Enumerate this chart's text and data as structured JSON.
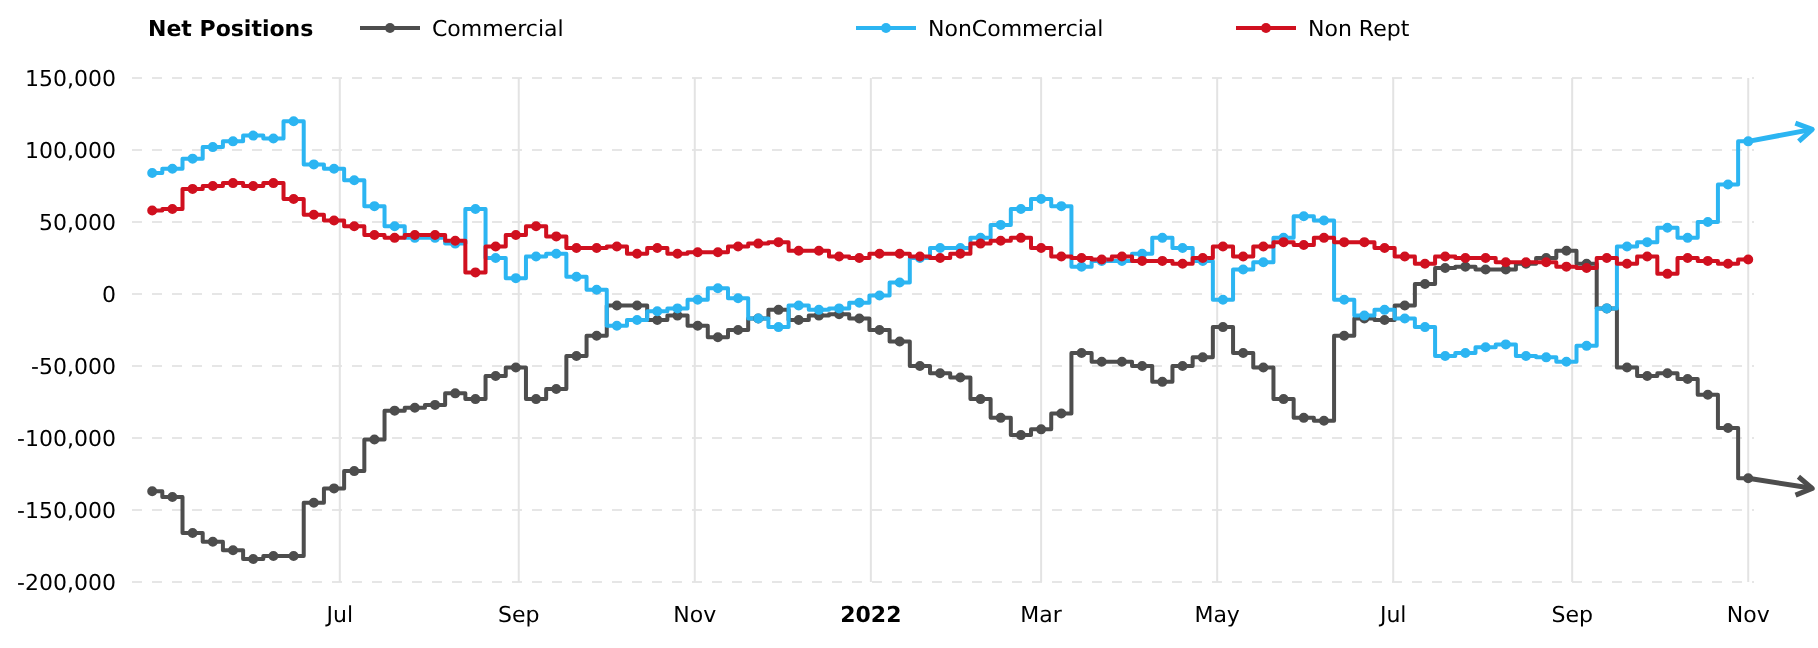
{
  "chart_data": {
    "type": "step",
    "legend_title": "Net Positions",
    "legend": "top",
    "grid": true,
    "marker": "circle",
    "line_style": "solid",
    "x": [
      "2021-04-27",
      "2021-05-04",
      "2021-05-11",
      "2021-05-18",
      "2021-05-25",
      "2021-06-01",
      "2021-06-08",
      "2021-06-15",
      "2021-06-22",
      "2021-06-29",
      "2021-07-06",
      "2021-07-13",
      "2021-07-20",
      "2021-07-27",
      "2021-08-03",
      "2021-08-10",
      "2021-08-17",
      "2021-08-24",
      "2021-08-31",
      "2021-09-07",
      "2021-09-14",
      "2021-09-21",
      "2021-09-28",
      "2021-10-05",
      "2021-10-12",
      "2021-10-19",
      "2021-10-26",
      "2021-11-02",
      "2021-11-09",
      "2021-11-16",
      "2021-11-23",
      "2021-11-30",
      "2021-12-07",
      "2021-12-14",
      "2021-12-21",
      "2021-12-28",
      "2022-01-04",
      "2022-01-11",
      "2022-01-18",
      "2022-01-25",
      "2022-02-01",
      "2022-02-08",
      "2022-02-15",
      "2022-02-22",
      "2022-03-01",
      "2022-03-08",
      "2022-03-15",
      "2022-03-22",
      "2022-03-29",
      "2022-04-05",
      "2022-04-12",
      "2022-04-19",
      "2022-04-26",
      "2022-05-03",
      "2022-05-10",
      "2022-05-17",
      "2022-05-24",
      "2022-05-31",
      "2022-06-07",
      "2022-06-14",
      "2022-06-21",
      "2022-06-28",
      "2022-07-05",
      "2022-07-12",
      "2022-07-19",
      "2022-07-26",
      "2022-08-02",
      "2022-08-09",
      "2022-08-16",
      "2022-08-23",
      "2022-08-30",
      "2022-09-06",
      "2022-09-13",
      "2022-09-20",
      "2022-09-27",
      "2022-10-04",
      "2022-10-11",
      "2022-10-18",
      "2022-10-25",
      "2022-11-01"
    ],
    "xlim": [
      "2021-04-20",
      "2022-11-03"
    ],
    "xticks": [
      {
        "value": "2021-07-01",
        "label": "Jul"
      },
      {
        "value": "2021-09-01",
        "label": "Sep"
      },
      {
        "value": "2021-11-01",
        "label": "Nov"
      },
      {
        "value": "2022-01-01",
        "label": "2022"
      },
      {
        "value": "2022-03-01",
        "label": "Mar"
      },
      {
        "value": "2022-05-01",
        "label": "May"
      },
      {
        "value": "2022-07-01",
        "label": "Jul"
      },
      {
        "value": "2022-09-01",
        "label": "Sep"
      },
      {
        "value": "2022-11-01",
        "label": "Nov"
      }
    ],
    "ylim": [
      -200000,
      150000
    ],
    "yticks": [
      {
        "value": -200000,
        "label": "-200,000"
      },
      {
        "value": -150000,
        "label": "-150,000"
      },
      {
        "value": -100000,
        "label": "-100,000"
      },
      {
        "value": -50000,
        "label": "-50,000"
      },
      0,
      {
        "value": 50000,
        "label": "50,000"
      },
      {
        "value": 100000,
        "label": "100,000"
      },
      {
        "value": 150000,
        "label": "150,000"
      }
    ],
    "series": [
      {
        "name": "Commercial",
        "color": "#4d4d4d",
        "values": [
          -137000,
          -141000,
          -166000,
          -172000,
          -178000,
          -184000,
          -182000,
          -182000,
          -145000,
          -135000,
          -123000,
          -101000,
          -81000,
          -79000,
          -77000,
          -69000,
          -73000,
          -57000,
          -51000,
          -73000,
          -66000,
          -43000,
          -29000,
          -8000,
          -8000,
          -18000,
          -15000,
          -22000,
          -30000,
          -25000,
          -17000,
          -11000,
          -18000,
          -15000,
          -14000,
          -17000,
          -25000,
          -33000,
          -50000,
          -55000,
          -58000,
          -73000,
          -86000,
          -98000,
          -94000,
          -83000,
          -41000,
          -47000,
          -47000,
          -50000,
          -61000,
          -50000,
          -44000,
          -23000,
          -41000,
          -51000,
          -73000,
          -86000,
          -88000,
          -29000,
          -17000,
          -18000,
          -8000,
          7000,
          18000,
          19000,
          17000,
          17000,
          21000,
          25000,
          30000,
          21000,
          -10000,
          -51000,
          -57000,
          -55000,
          -59000,
          -70000,
          -93000,
          -128000
        ]
      },
      {
        "name": "NonCommercial",
        "color": "#2cb5f2",
        "values": [
          84000,
          87000,
          94000,
          102000,
          106000,
          110000,
          108000,
          120000,
          90000,
          87000,
          79000,
          61000,
          47000,
          39000,
          39000,
          35000,
          59000,
          25000,
          11000,
          26000,
          28000,
          12000,
          3000,
          -22000,
          -18000,
          -12000,
          -10000,
          -4000,
          4000,
          -3000,
          -17000,
          -23000,
          -8000,
          -11000,
          -10000,
          -6000,
          -1000,
          8000,
          25000,
          32000,
          32000,
          39000,
          48000,
          59000,
          66000,
          61000,
          19000,
          23000,
          23000,
          28000,
          39000,
          32000,
          23000,
          -4000,
          17000,
          22000,
          39000,
          54000,
          51000,
          -4000,
          -15000,
          -11000,
          -17000,
          -23000,
          -43000,
          -41000,
          -37000,
          -35000,
          -43000,
          -44000,
          -47000,
          -36000,
          -10000,
          33000,
          36000,
          46000,
          39000,
          50000,
          76000,
          106000
        ]
      },
      {
        "name": "Non Rept",
        "color": "#d0101f",
        "values": [
          58000,
          59000,
          73000,
          75000,
          77000,
          75000,
          77000,
          66000,
          55000,
          51000,
          47000,
          41000,
          39000,
          41000,
          41000,
          37000,
          15000,
          33000,
          41000,
          47000,
          40000,
          32000,
          32000,
          33000,
          28000,
          32000,
          28000,
          29000,
          29000,
          33000,
          35000,
          36000,
          30000,
          30000,
          26000,
          25000,
          28000,
          28000,
          26000,
          25000,
          28000,
          35000,
          37000,
          39000,
          32000,
          26000,
          25000,
          24000,
          26000,
          23000,
          23000,
          21000,
          25000,
          33000,
          26000,
          33000,
          36000,
          34000,
          39000,
          36000,
          36000,
          32000,
          26000,
          21000,
          26000,
          25000,
          25000,
          22000,
          22000,
          22000,
          19000,
          18000,
          25000,
          21000,
          26000,
          14000,
          25000,
          23000,
          21000,
          24000
        ]
      }
    ]
  }
}
